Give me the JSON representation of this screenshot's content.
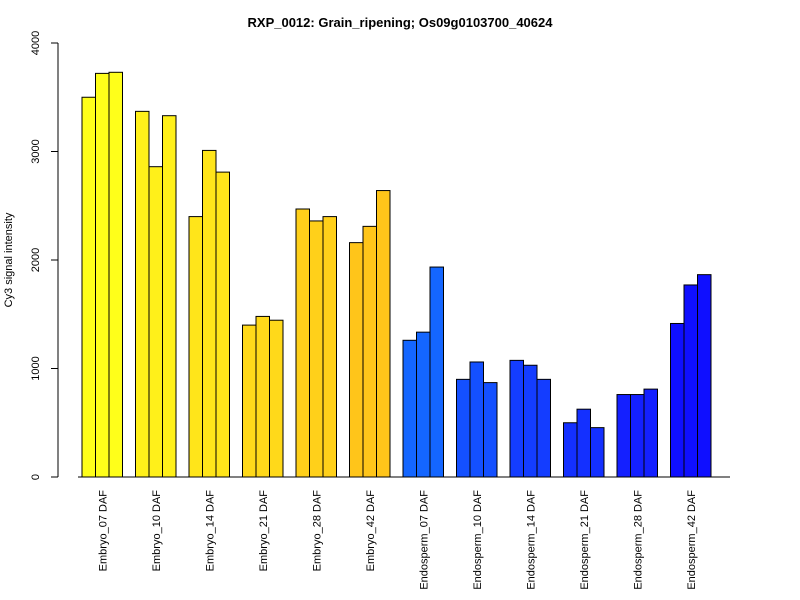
{
  "chart_data": {
    "type": "bar",
    "title": "RXP_0012: Grain_ripening; Os09g0103700_40624",
    "xlabel": "",
    "ylabel": "Cy3 signal intensity",
    "ylim": [
      0,
      4000
    ],
    "yticks": [
      0,
      1000,
      2000,
      3000,
      4000
    ],
    "grid": false,
    "legend": "none",
    "categories": [
      "Embryo_07 DAF",
      "Embryo_10 DAF",
      "Embryo_14 DAF",
      "Embryo_21 DAF",
      "Embryo_28 DAF",
      "Embryo_42 DAF",
      "Endosperm_07 DAF",
      "Endosperm_10 DAF",
      "Endosperm_14 DAF",
      "Endosperm_21 DAF",
      "Endosperm_28 DAF",
      "Endosperm_42 DAF"
    ],
    "group_colors": [
      "#ffff1a",
      "#fff01a",
      "#ffe51a",
      "#ffd91a",
      "#ffd01a",
      "#ffc51a",
      "#1466ff",
      "#1450ff",
      "#143dff",
      "#1430ff",
      "#1420ff",
      "#0f0fff"
    ],
    "replicates": [
      [
        3500,
        3720,
        3730
      ],
      [
        3370,
        2860,
        3330
      ],
      [
        2400,
        3010,
        2810
      ],
      [
        1400,
        1480,
        1445
      ],
      [
        2470,
        2360,
        2400
      ],
      [
        2160,
        2310,
        2640
      ],
      [
        1260,
        1335,
        1935
      ],
      [
        900,
        1060,
        870
      ],
      [
        1075,
        1030,
        900
      ],
      [
        500,
        625,
        455
      ],
      [
        760,
        760,
        810
      ],
      [
        1415,
        1770,
        1865
      ]
    ]
  }
}
